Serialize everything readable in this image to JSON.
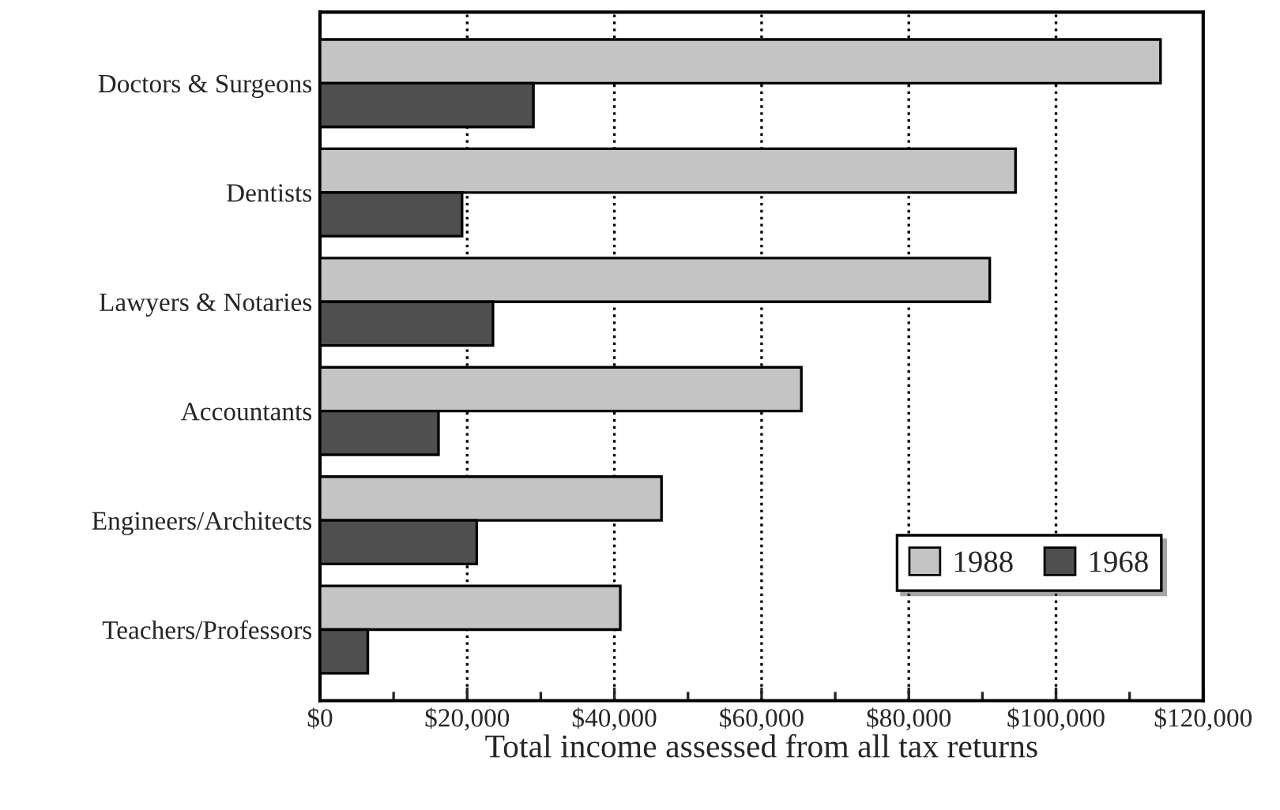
{
  "chart_data": {
    "type": "bar",
    "orientation": "horizontal",
    "xlabel": "Total income assessed from all tax returns",
    "categories": [
      "Doctors & Surgeons",
      "Dentists",
      "Lawyers & Notaries",
      "Accountants",
      "Engineers/Architects",
      "Teachers/Professors"
    ],
    "series": [
      {
        "name": "1988",
        "color": "#c4c4c4",
        "values": [
          114200,
          94500,
          91000,
          65400,
          46400,
          40800
        ]
      },
      {
        "name": "1968",
        "color": "#4f4f4f",
        "values": [
          29000,
          19300,
          23500,
          16100,
          21300,
          6500
        ]
      }
    ],
    "xlim": [
      0,
      120000
    ],
    "xticks": [
      {
        "value": 0,
        "label": "$0"
      },
      {
        "value": 10000,
        "label": null
      },
      {
        "value": 20000,
        "label": "$20,000"
      },
      {
        "value": 30000,
        "label": null
      },
      {
        "value": 40000,
        "label": "$40,000"
      },
      {
        "value": 50000,
        "label": null
      },
      {
        "value": 60000,
        "label": "$60,000"
      },
      {
        "value": 70000,
        "label": null
      },
      {
        "value": 80000,
        "label": "$80,000"
      },
      {
        "value": 90000,
        "label": null
      },
      {
        "value": 100000,
        "label": "$100,000"
      },
      {
        "value": 110000,
        "label": null
      },
      {
        "value": 120000,
        "label": "$120,000"
      }
    ],
    "grid": "x",
    "line_style": "dotted",
    "legend": "bottom right"
  }
}
